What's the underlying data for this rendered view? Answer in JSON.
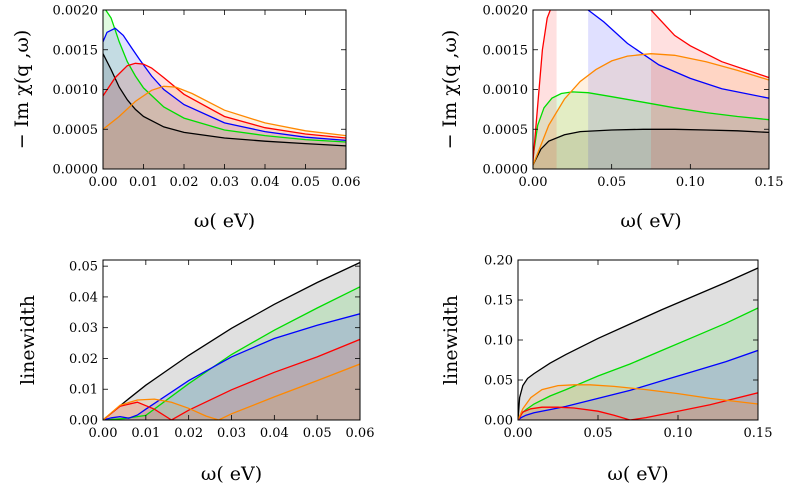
{
  "chart_data": [
    {
      "type": "area",
      "xlabel": "ω( eV)",
      "ylabel": "− Im χ(q ,ω)",
      "xlim": [
        0,
        0.06
      ],
      "ylim": [
        0,
        0.002
      ],
      "xticks": [
        "0.00",
        "0.01",
        "0.02",
        "0.03",
        "0.04",
        "0.05",
        "0.06"
      ],
      "yticks": [
        "0.0000",
        "0.0005",
        "0.0010",
        "0.0015",
        "0.0020"
      ],
      "series": [
        {
          "color": "#000000",
          "x": [
            0,
            0.002,
            0.004,
            0.006,
            0.008,
            0.01,
            0.015,
            0.02,
            0.03,
            0.04,
            0.05,
            0.06
          ],
          "y": [
            0.00145,
            0.00125,
            0.00103,
            0.00087,
            0.00075,
            0.00066,
            0.00053,
            0.00046,
            0.00039,
            0.00035,
            0.00032,
            0.00029
          ]
        },
        {
          "color": "#00dd00",
          "x": [
            0,
            0.002,
            0.004,
            0.006,
            0.008,
            0.01,
            0.015,
            0.02,
            0.03,
            0.04,
            0.05,
            0.06
          ],
          "y": [
            0.00205,
            0.0019,
            0.0016,
            0.00135,
            0.00117,
            0.00102,
            0.00078,
            0.00064,
            0.00049,
            0.00042,
            0.00037,
            0.00034
          ]
        },
        {
          "color": "#0000ff",
          "x": [
            0,
            0.001,
            0.003,
            0.005,
            0.007,
            0.009,
            0.012,
            0.015,
            0.02,
            0.03,
            0.04,
            0.05,
            0.06
          ],
          "y": [
            0.0016,
            0.00172,
            0.00177,
            0.00168,
            0.00153,
            0.00138,
            0.00117,
            0.001,
            0.00081,
            0.00058,
            0.00047,
            0.0004,
            0.00036
          ]
        },
        {
          "color": "#ff0000",
          "x": [
            0,
            0.003,
            0.006,
            0.008,
            0.01,
            0.012,
            0.015,
            0.02,
            0.03,
            0.04,
            0.05,
            0.06
          ],
          "y": [
            0.00092,
            0.00115,
            0.0013,
            0.00133,
            0.00132,
            0.00127,
            0.00115,
            0.00094,
            0.00066,
            0.00052,
            0.00044,
            0.00039
          ]
        },
        {
          "color": "#ff8800",
          "x": [
            0,
            0.004,
            0.008,
            0.012,
            0.015,
            0.018,
            0.022,
            0.03,
            0.04,
            0.05,
            0.06
          ],
          "y": [
            0.0005,
            0.00066,
            0.00085,
            0.00099,
            0.00104,
            0.00103,
            0.00095,
            0.00074,
            0.00058,
            0.00048,
            0.00042
          ]
        }
      ]
    },
    {
      "type": "area",
      "xlabel": "ω( eV)",
      "ylabel": "− Im χ(q ,ω)",
      "xlim": [
        0,
        0.15
      ],
      "ylim": [
        0,
        0.002
      ],
      "xticks": [
        "0.00",
        "0.05",
        "0.10",
        "0.15"
      ],
      "yticks": [
        "0.0000",
        "0.0005",
        "0.0010",
        "0.0015",
        "0.0020"
      ],
      "series": [
        {
          "color": "#000000",
          "x": [
            0,
            0.005,
            0.01,
            0.02,
            0.03,
            0.05,
            0.07,
            0.09,
            0.11,
            0.13,
            0.15
          ],
          "y": [
            5e-05,
            0.00025,
            0.00035,
            0.00043,
            0.00047,
            0.00049,
            0.0005,
            0.0005,
            0.00049,
            0.00048,
            0.00046
          ]
        },
        {
          "color": "#00dd00",
          "x": [
            0,
            0.003,
            0.007,
            0.012,
            0.018,
            0.025,
            0.035,
            0.05,
            0.07,
            0.09,
            0.11,
            0.13,
            0.15
          ],
          "y": [
            0.00015,
            0.00055,
            0.00077,
            0.00089,
            0.00095,
            0.00097,
            0.00096,
            0.00091,
            0.00084,
            0.00077,
            0.00071,
            0.00066,
            0.00062
          ]
        },
        {
          "color": "#0000ff",
          "x": [
            0.035,
            0.045,
            0.06,
            0.08,
            0.1,
            0.12,
            0.15
          ],
          "y": [
            0.002,
            0.00185,
            0.00158,
            0.00131,
            0.00114,
            0.00101,
            0.00089
          ]
        },
        {
          "color": "#ff0000",
          "x": [
            0,
            0.003,
            0.006,
            0.009,
            0.012,
            0.015
          ],
          "y": [
            0.0001,
            0.0008,
            0.0015,
            0.0019,
            0.00205,
            0.0021
          ]
        },
        {
          "color": "#ff0000",
          "x": [
            0.075,
            0.09,
            0.1,
            0.12,
            0.15
          ],
          "y": [
            0.002,
            0.00168,
            0.00155,
            0.00135,
            0.00115
          ]
        },
        {
          "color": "#ff8800",
          "x": [
            0,
            0.005,
            0.01,
            0.02,
            0.03,
            0.04,
            0.05,
            0.06,
            0.075,
            0.09,
            0.11,
            0.13,
            0.15
          ],
          "y": [
            5e-05,
            0.0003,
            0.00055,
            0.00088,
            0.0011,
            0.00125,
            0.00136,
            0.00142,
            0.00145,
            0.00143,
            0.00135,
            0.00124,
            0.00112
          ]
        }
      ]
    },
    {
      "type": "area",
      "xlabel": "ω( eV)",
      "ylabel": "linewidth",
      "xlim": [
        0,
        0.06
      ],
      "ylim": [
        0,
        0.052
      ],
      "xticks": [
        "0.00",
        "0.01",
        "0.02",
        "0.03",
        "0.04",
        "0.05",
        "0.06"
      ],
      "yticks": [
        "0.00",
        "0.01",
        "0.02",
        "0.03",
        "0.04",
        "0.05"
      ],
      "series": [
        {
          "color": "#000000",
          "x": [
            0,
            0.005,
            0.01,
            0.02,
            0.03,
            0.04,
            0.05,
            0.06
          ],
          "y": [
            0,
            0.0058,
            0.0113,
            0.021,
            0.0298,
            0.0376,
            0.0447,
            0.0512
          ]
        },
        {
          "color": "#00dd00",
          "x": [
            0,
            0.005,
            0.01,
            0.02,
            0.03,
            0.04,
            0.05,
            0.06
          ],
          "y": [
            0,
            0.0005,
            0.0015,
            0.0118,
            0.0213,
            0.0292,
            0.0364,
            0.0433
          ]
        },
        {
          "color": "#0000ff",
          "x": [
            0,
            0.002,
            0.004,
            0.006,
            0.008,
            0.01,
            0.02,
            0.03,
            0.04,
            0.05,
            0.06
          ],
          "y": [
            0,
            0.0007,
            0.0011,
            0.0006,
            0.0016,
            0.0035,
            0.0128,
            0.0205,
            0.0265,
            0.0308,
            0.0345
          ]
        },
        {
          "color": "#ff0000",
          "x": [
            0,
            0.004,
            0.008,
            0.012,
            0.016,
            0.02,
            0.03,
            0.04,
            0.05,
            0.06
          ],
          "y": [
            0,
            0.0045,
            0.0058,
            0.0035,
            0,
            0.0032,
            0.0098,
            0.0155,
            0.0205,
            0.0262
          ]
        },
        {
          "color": "#ff8800",
          "x": [
            0,
            0.004,
            0.008,
            0.012,
            0.016,
            0.02,
            0.024,
            0.027,
            0.03,
            0.04,
            0.05,
            0.06
          ],
          "y": [
            0,
            0.0048,
            0.0065,
            0.0068,
            0.0058,
            0.0038,
            0.0013,
            0,
            0.002,
            0.0075,
            0.0128,
            0.0182
          ]
        }
      ]
    },
    {
      "type": "area",
      "xlabel": "ω( eV)",
      "ylabel": "linewidth",
      "xlim": [
        0,
        0.15
      ],
      "ylim": [
        0,
        0.2
      ],
      "xticks": [
        "0.00",
        "0.05",
        "0.10",
        "0.15"
      ],
      "yticks": [
        "0.00",
        "0.05",
        "0.10",
        "0.15",
        "0.20"
      ],
      "series": [
        {
          "color": "#000000",
          "x": [
            0,
            0.001,
            0.003,
            0.006,
            0.01,
            0.02,
            0.03,
            0.05,
            0.07,
            0.09,
            0.11,
            0.13,
            0.15
          ],
          "y": [
            0,
            0.028,
            0.043,
            0.052,
            0.058,
            0.071,
            0.082,
            0.102,
            0.12,
            0.138,
            0.155,
            0.172,
            0.19
          ]
        },
        {
          "color": "#00dd00",
          "x": [
            0,
            0.002,
            0.005,
            0.01,
            0.02,
            0.03,
            0.05,
            0.07,
            0.09,
            0.11,
            0.13,
            0.15
          ],
          "y": [
            0,
            0.008,
            0.013,
            0.02,
            0.03,
            0.038,
            0.055,
            0.07,
            0.087,
            0.104,
            0.121,
            0.14
          ]
        },
        {
          "color": "#0000ff",
          "x": [
            0,
            0.002,
            0.005,
            0.01,
            0.02,
            0.03,
            0.05,
            0.07,
            0.09,
            0.11,
            0.13,
            0.15
          ],
          "y": [
            0,
            0.003,
            0.006,
            0.009,
            0.013,
            0.017,
            0.027,
            0.037,
            0.049,
            0.061,
            0.073,
            0.087
          ]
        },
        {
          "color": "#ff0000",
          "x": [
            0,
            0.003,
            0.008,
            0.015,
            0.025,
            0.035,
            0.05,
            0.06,
            0.07,
            0.08,
            0.1,
            0.12,
            0.15
          ],
          "y": [
            0,
            0.01,
            0.014,
            0.016,
            0.016,
            0.015,
            0.011,
            0.006,
            0,
            0.003,
            0.011,
            0.019,
            0.034
          ]
        },
        {
          "color": "#ff8800",
          "x": [
            0,
            0.003,
            0.008,
            0.015,
            0.025,
            0.035,
            0.045,
            0.06,
            0.08,
            0.1,
            0.12,
            0.15
          ],
          "y": [
            0,
            0.014,
            0.028,
            0.038,
            0.043,
            0.044,
            0.044,
            0.042,
            0.038,
            0.033,
            0.027,
            0.02
          ]
        }
      ]
    }
  ]
}
